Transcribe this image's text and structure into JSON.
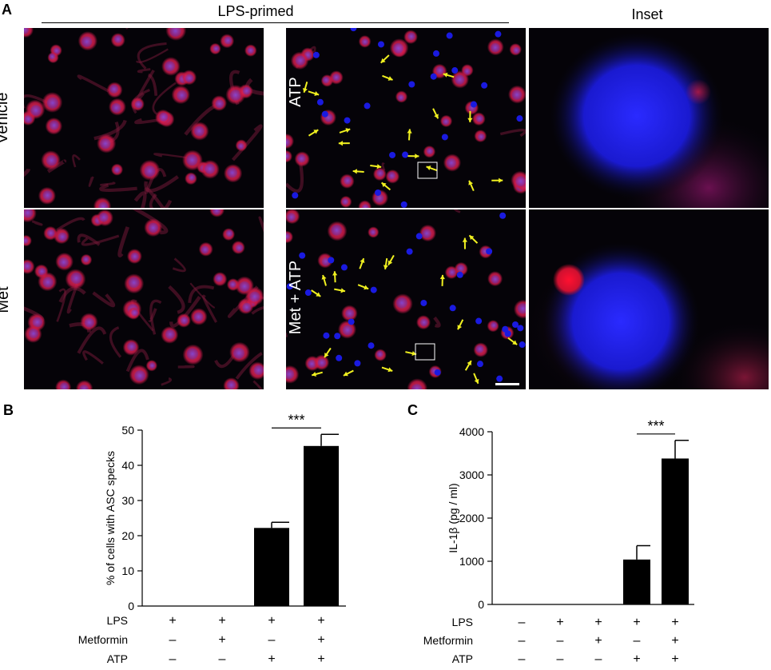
{
  "figure": {
    "panel_a": {
      "letter": "A",
      "header": "LPS-primed",
      "inset_header": "Inset",
      "row_labels": [
        "Vehicle",
        "Met"
      ],
      "mid_labels": [
        "ATP",
        "Met + ATP"
      ]
    },
    "panel_b": {
      "letter": "B"
    },
    "panel_c": {
      "letter": "C"
    }
  },
  "chart_data": [
    {
      "type": "bar",
      "ylabel": "% of cells with ASC specks",
      "ylim": [
        0,
        50
      ],
      "yticks": [
        "0",
        "10",
        "20",
        "30",
        "40",
        "50"
      ],
      "groups": 4,
      "values": [
        0,
        0,
        22.2,
        45.5
      ],
      "errors": [
        0,
        0,
        1.6,
        3.3
      ],
      "significance": "***",
      "treatments": [
        {
          "name": "LPS",
          "signs": [
            "+",
            "+",
            "+",
            "+"
          ]
        },
        {
          "name": "Metformin",
          "signs": [
            "–",
            "+",
            "–",
            "+"
          ]
        },
        {
          "name": "ATP",
          "signs": [
            "–",
            "–",
            "+",
            "+"
          ]
        }
      ],
      "bar_color": "#000000"
    },
    {
      "type": "bar",
      "ylabel": "IL-1β (pg / ml)",
      "ylim": [
        0,
        4000
      ],
      "yticks": [
        "0",
        "1000",
        "2000",
        "3000",
        "4000"
      ],
      "groups": 5,
      "values": [
        0,
        0,
        0,
        1040,
        3380
      ],
      "errors": [
        0,
        0,
        0,
        320,
        420
      ],
      "significance": "***",
      "treatments": [
        {
          "name": "LPS",
          "signs": [
            "–",
            "+",
            "+",
            "+",
            "+"
          ]
        },
        {
          "name": "Metformin",
          "signs": [
            "–",
            "–",
            "+",
            "–",
            "+"
          ]
        },
        {
          "name": "ATP",
          "signs": [
            "–",
            "–",
            "–",
            "+",
            "+"
          ]
        }
      ],
      "bar_color": "#000000"
    }
  ]
}
